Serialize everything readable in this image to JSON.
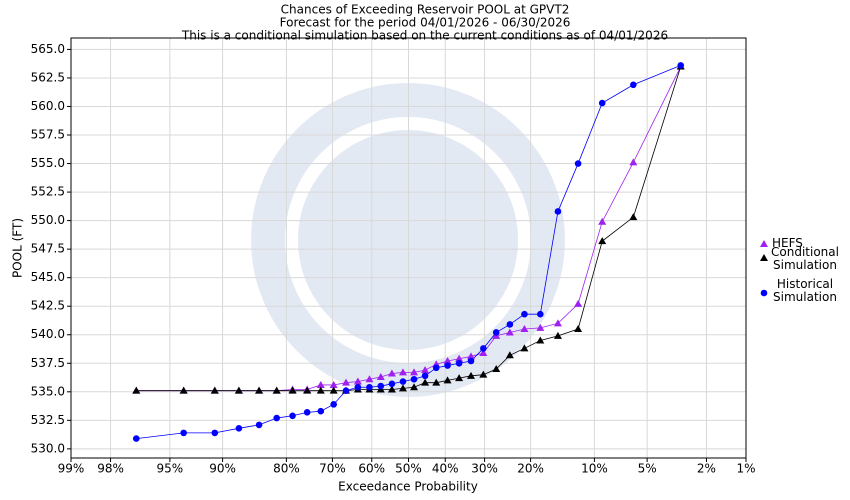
{
  "chart_data": {
    "type": "line",
    "title": "Chances of Exceeding Reservoir POOL at GPVT2",
    "subtitle": [
      "Forecast for the period 04/01/2026 - 06/30/2026",
      "This is a conditional simulation based on the current conditions as of 04/01/2026"
    ],
    "x_label": "Exceedance Probability",
    "y_label": "POOL (FT)",
    "x_scale": "probit",
    "grid": true,
    "legend": "right",
    "xlim": [
      99,
      1
    ],
    "xticks": [
      {
        "value": 99,
        "label": "99%"
      },
      {
        "value": 98,
        "label": "98%"
      },
      {
        "value": 95,
        "label": "95%"
      },
      {
        "value": 90,
        "label": "90%"
      },
      {
        "value": 80,
        "label": "80%"
      },
      {
        "value": 70,
        "label": "70%"
      },
      {
        "value": 60,
        "label": "60%"
      },
      {
        "value": 50,
        "label": "50%"
      },
      {
        "value": 40,
        "label": "40%"
      },
      {
        "value": 30,
        "label": "30%"
      },
      {
        "value": 20,
        "label": "20%"
      },
      {
        "value": 10,
        "label": "10%"
      },
      {
        "value": 5,
        "label": "5%"
      },
      {
        "value": 2,
        "label": "2%"
      },
      {
        "value": 1,
        "label": "1%"
      }
    ],
    "ylim": [
      529.2,
      566.0
    ],
    "yticks": [
      {
        "value": 530,
        "label": "530.0"
      },
      532.5,
      {
        "value": 535,
        "label": "535.0"
      },
      537.5,
      {
        "value": 540,
        "label": "540.0"
      },
      542.5,
      {
        "value": 545,
        "label": "545.0"
      },
      547.5,
      {
        "value": 550,
        "label": "550.0"
      },
      552.5,
      {
        "value": 555,
        "label": "555.0"
      },
      557.5,
      {
        "value": 560,
        "label": "560.0"
      },
      562.5,
      {
        "value": 565,
        "label": "565.0"
      }
    ],
    "x": [
      96.97,
      93.94,
      90.91,
      87.88,
      84.85,
      81.82,
      78.79,
      75.76,
      72.73,
      69.7,
      66.67,
      63.64,
      60.61,
      57.58,
      54.55,
      51.52,
      48.48,
      45.45,
      42.42,
      39.39,
      36.36,
      33.33,
      30.3,
      27.27,
      24.24,
      21.21,
      18.18,
      15.15,
      12.12,
      9.09,
      6.06,
      3.03
    ],
    "series": [
      {
        "name": "HEFS",
        "color": "#a020f0",
        "marker": "triangle",
        "values": [
          535.1,
          535.1,
          535.1,
          535.1,
          535.1,
          535.1,
          535.2,
          535.2,
          535.6,
          535.6,
          535.8,
          535.9,
          536.1,
          536.3,
          536.6,
          536.7,
          536.7,
          536.9,
          537.4,
          537.7,
          537.9,
          538.1,
          538.4,
          539.9,
          540.2,
          540.5,
          540.6,
          541.0,
          542.7,
          549.9,
          555.1,
          563.5
        ]
      },
      {
        "name": "Conditional Simulation",
        "color": "#000000",
        "marker": "triangle",
        "values": [
          535.1,
          535.1,
          535.1,
          535.1,
          535.1,
          535.1,
          535.1,
          535.1,
          535.1,
          535.1,
          535.1,
          535.2,
          535.2,
          535.2,
          535.2,
          535.3,
          535.4,
          535.8,
          535.8,
          536.0,
          536.2,
          536.4,
          536.5,
          537.0,
          538.2,
          538.8,
          539.5,
          539.9,
          540.5,
          548.2,
          550.3,
          563.5
        ]
      },
      {
        "name": "Historical Simulation",
        "color": "#0000ff",
        "marker": "circle",
        "values": [
          530.9,
          531.4,
          531.4,
          531.8,
          532.1,
          532.7,
          532.9,
          533.2,
          533.3,
          533.9,
          535.1,
          535.4,
          535.4,
          535.5,
          535.7,
          535.9,
          536.1,
          536.4,
          537.1,
          537.3,
          537.5,
          537.7,
          538.8,
          540.2,
          540.9,
          541.8,
          541.8,
          550.8,
          555.0,
          560.3,
          561.9,
          563.6
        ]
      }
    ]
  }
}
